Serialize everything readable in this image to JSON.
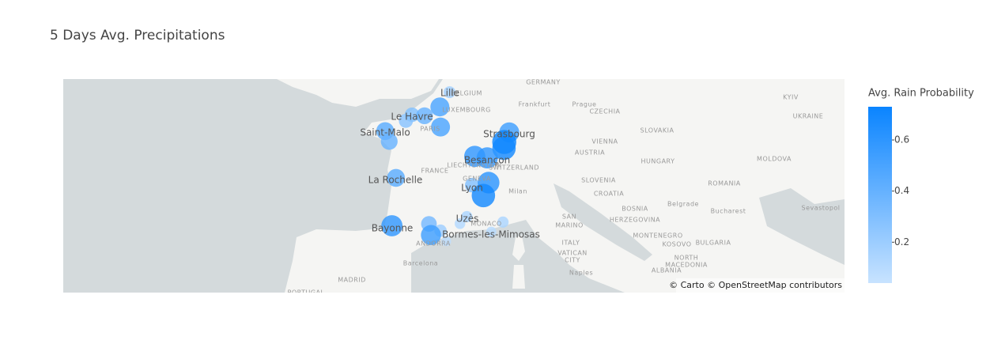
{
  "chart_data": {
    "type": "scattermap",
    "title": "5 Days Avg. Precipitations",
    "lonlim": [
      -27.3,
      34.1
    ],
    "latlim": [
      39.56,
      51.28
    ],
    "series": [
      {
        "name": "Avg. Rain Probability",
        "lon": [
          3.06,
          2.3,
          0.11,
          -0.37,
          1.09,
          2.35,
          -2.0,
          -1.68,
          7.75,
          7.36,
          7.34,
          5.04,
          6.02,
          -1.15,
          4.84,
          6.13,
          5.72,
          -1.47,
          1.44,
          2.35,
          1.6,
          4.42,
          7.26,
          6.34,
          3.88,
          2.8
        ],
        "lat": [
          50.63,
          49.89,
          49.49,
          49.18,
          49.44,
          48.86,
          48.65,
          48.11,
          48.58,
          48.08,
          47.75,
          47.32,
          47.24,
          46.16,
          45.76,
          45.9,
          45.19,
          43.49,
          43.6,
          43.21,
          42.96,
          44.01,
          43.7,
          43.15,
          43.61,
          42.6
        ],
        "values": [
          0.18,
          0.5,
          0.3,
          0.28,
          0.4,
          0.5,
          0.45,
          0.4,
          0.55,
          0.73,
          0.7,
          0.6,
          0.6,
          0.45,
          0.3,
          0.62,
          0.7,
          0.6,
          0.35,
          0.2,
          0.55,
          0.15,
          0.15,
          0.1,
          0.12,
          0.08
        ]
      }
    ],
    "colorscale": [
      "#c8e3ff",
      "#0a84ff"
    ],
    "clim": [
      0.04,
      0.73
    ],
    "colorbar": {
      "title": "Avg. Rain Probability",
      "ticks": [
        0.2,
        0.4,
        0.6
      ]
    },
    "basemap": {
      "attribution": "© Carto © OpenStreetMap contributors",
      "labels": [
        "GERMANY",
        "BELGIUM",
        "LUXEMBOURG",
        "Frankfurt",
        "Prague",
        "CZECHIA",
        "KYIV",
        "UKRAINE",
        "SLOVAKIA",
        "VIENNA",
        "AUSTRIA",
        "HUNGARY",
        "MOLDOVA",
        "PARIS",
        "FRANCE",
        "LIECHTENSTEIN",
        "SWITZERLAND",
        "GENEVA",
        "SLOVENIA",
        "CROATIA",
        "ROMANIA",
        "Milan",
        "BOSNIA",
        "HERZEGOVINA",
        "Belgrade",
        "Bucharest",
        "Sevastopol",
        "SAN",
        "MARINO",
        "MONACO",
        "ITALY",
        "MONTENEGRO",
        "KOSOVO",
        "BULGARIA",
        "ANDORRA",
        "VATICAN",
        "CITY",
        "NORTH",
        "MACEDONIA",
        "ALBANIA",
        "Barcelona",
        "Naples",
        "MADRID",
        "PORTUGAL",
        "Lille",
        "Le Havre",
        "Saint-Malo",
        "Strasbourg",
        "Besançon",
        "La Rochelle",
        "Lyon",
        "Uzès",
        "Bayonne",
        "Bormes-les-Mimosas"
      ]
    }
  }
}
